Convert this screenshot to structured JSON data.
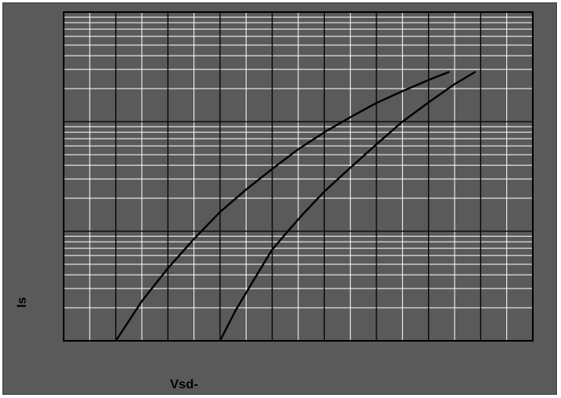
{
  "chart_data": {
    "type": "line",
    "title": "",
    "xlabel": "Vsd-",
    "ylabel": "Is",
    "x_scale": "linear",
    "y_scale": "log",
    "xlim": [
      0,
      9
    ],
    "ylim": [
      1,
      1000
    ],
    "grid": true,
    "colors": {
      "background": "#5a5a5a",
      "plot_area": "#5a5a5a",
      "minor_grid": "#ffffff",
      "major_grid": "#000000",
      "series": "#000000"
    },
    "series": [
      {
        "x": [
          1.0,
          1.5,
          2.0,
          2.5,
          3.0,
          3.5,
          4.0,
          4.5,
          5.0,
          5.5,
          6.0,
          6.5,
          7.0,
          7.4
        ],
        "y": [
          1.0,
          2.3,
          4.6,
          8.5,
          15,
          24,
          37,
          56,
          80,
          110,
          148,
          190,
          240,
          285
        ]
      },
      {
        "x": [
          3.0,
          3.3,
          3.6,
          4.0,
          4.3,
          4.6,
          5.0,
          5.5,
          6.0,
          6.5,
          7.0,
          7.5,
          7.9
        ],
        "y": [
          1.0,
          1.9,
          3.3,
          6.8,
          10,
          14.5,
          23,
          38,
          62,
          100,
          150,
          220,
          285
        ]
      }
    ]
  }
}
